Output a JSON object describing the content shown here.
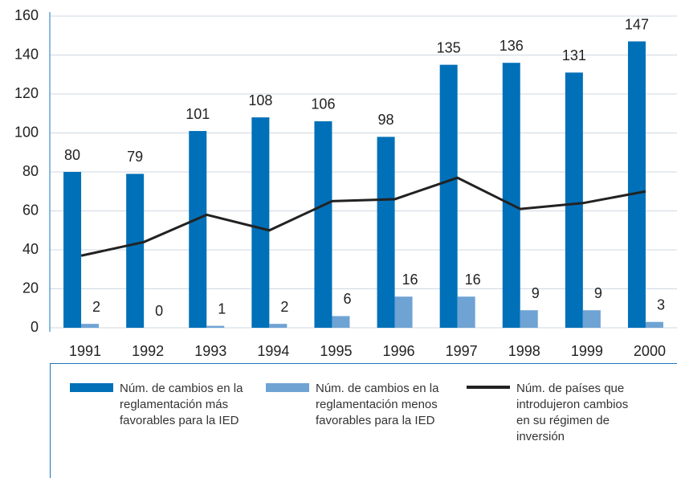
{
  "chart_data": {
    "type": "bar-line",
    "categories": [
      "1991",
      "1992",
      "1993",
      "1994",
      "1995",
      "1996",
      "1997",
      "1998",
      "1999",
      "2000"
    ],
    "series": [
      {
        "name": "Núm. de cambios en la reglamentación más favorables para la IED",
        "type": "bar",
        "color": "#0070b8",
        "values": [
          80,
          79,
          101,
          108,
          106,
          98,
          135,
          136,
          131,
          147
        ]
      },
      {
        "name": "Núm. de cambios en la reglamentación menos favorables para la IED",
        "type": "bar",
        "color": "#6fa3d4",
        "values": [
          2,
          0,
          1,
          2,
          6,
          16,
          16,
          9,
          9,
          3
        ]
      },
      {
        "name": "Núm. de países que introdujeron cambios en su régimen de inversión",
        "type": "line",
        "color": "#222222",
        "values": [
          37,
          44,
          58,
          50,
          65,
          66,
          77,
          61,
          64,
          70
        ]
      }
    ],
    "ylim": [
      0,
      160
    ],
    "yticks": [
      0,
      20,
      40,
      60,
      80,
      100,
      120,
      140,
      160
    ],
    "grid": true
  }
}
